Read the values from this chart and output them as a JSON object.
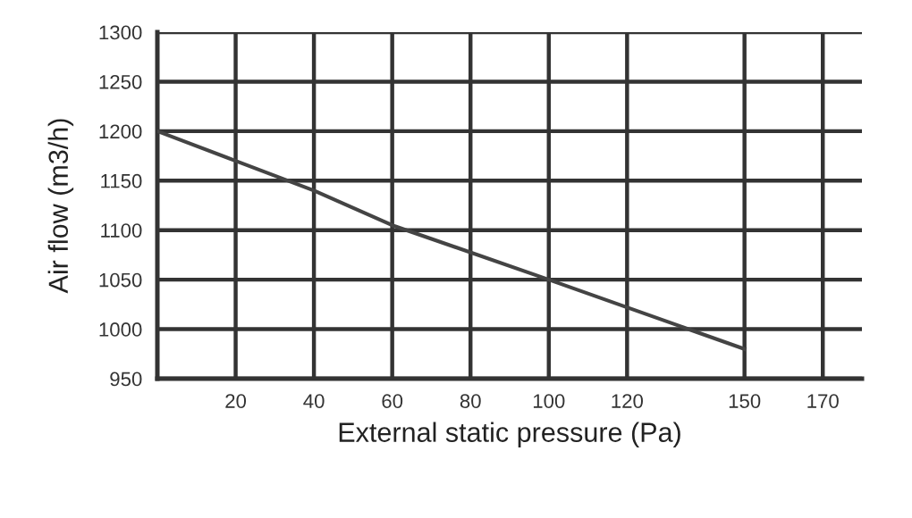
{
  "chart_data": {
    "type": "line",
    "xlabel": "External static pressure (Pa)",
    "ylabel": "Air flow (m3/h)",
    "x": [
      0,
      20,
      40,
      60,
      100,
      150
    ],
    "series": [
      {
        "color": "#444444",
        "values": [
          1200,
          1170,
          1140,
          1105,
          1050,
          980
        ]
      }
    ],
    "xlim": [
      0,
      180
    ],
    "xticks": [
      20,
      40,
      60,
      80,
      100,
      120,
      150,
      170
    ],
    "ylim": [
      950,
      1300
    ],
    "yticks": [
      950,
      1000,
      1050,
      1100,
      1150,
      1200,
      1250,
      1300
    ],
    "grid": true,
    "marker": "none",
    "line_style": "solid"
  }
}
